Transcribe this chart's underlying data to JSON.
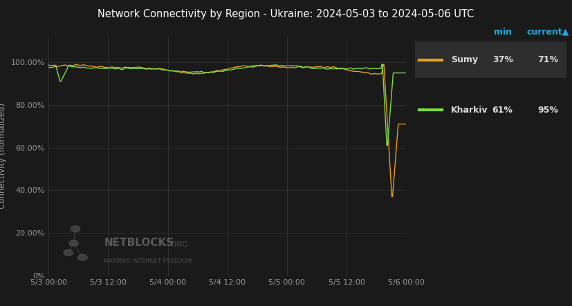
{
  "title": "Network Connectivity by Region - Ukraine: 2024-05-03 to 2024-05-06 UTC",
  "ylabel": "Connectivity (normalized)",
  "bg_color": "#1a1a1a",
  "plot_bg_color": "#1a1a1a",
  "grid_color": "#3a3a3a",
  "title_color": "#ffffff",
  "tick_color": "#999999",
  "label_color": "#999999",
  "sumy_color": "#e8a020",
  "kharkiv_color": "#7edd44",
  "legend_header_color": "#22aadd",
  "x_ticks_labels": [
    "5/3 00:00",
    "5/3 12:00",
    "5/4 00:00",
    "5/4 12:00",
    "5/5 00:00",
    "5/5 12:00",
    "5/6 00:00"
  ],
  "sumy_min": "37%",
  "sumy_current": "71%",
  "kharkiv_min": "61%",
  "kharkiv_current": "95%"
}
